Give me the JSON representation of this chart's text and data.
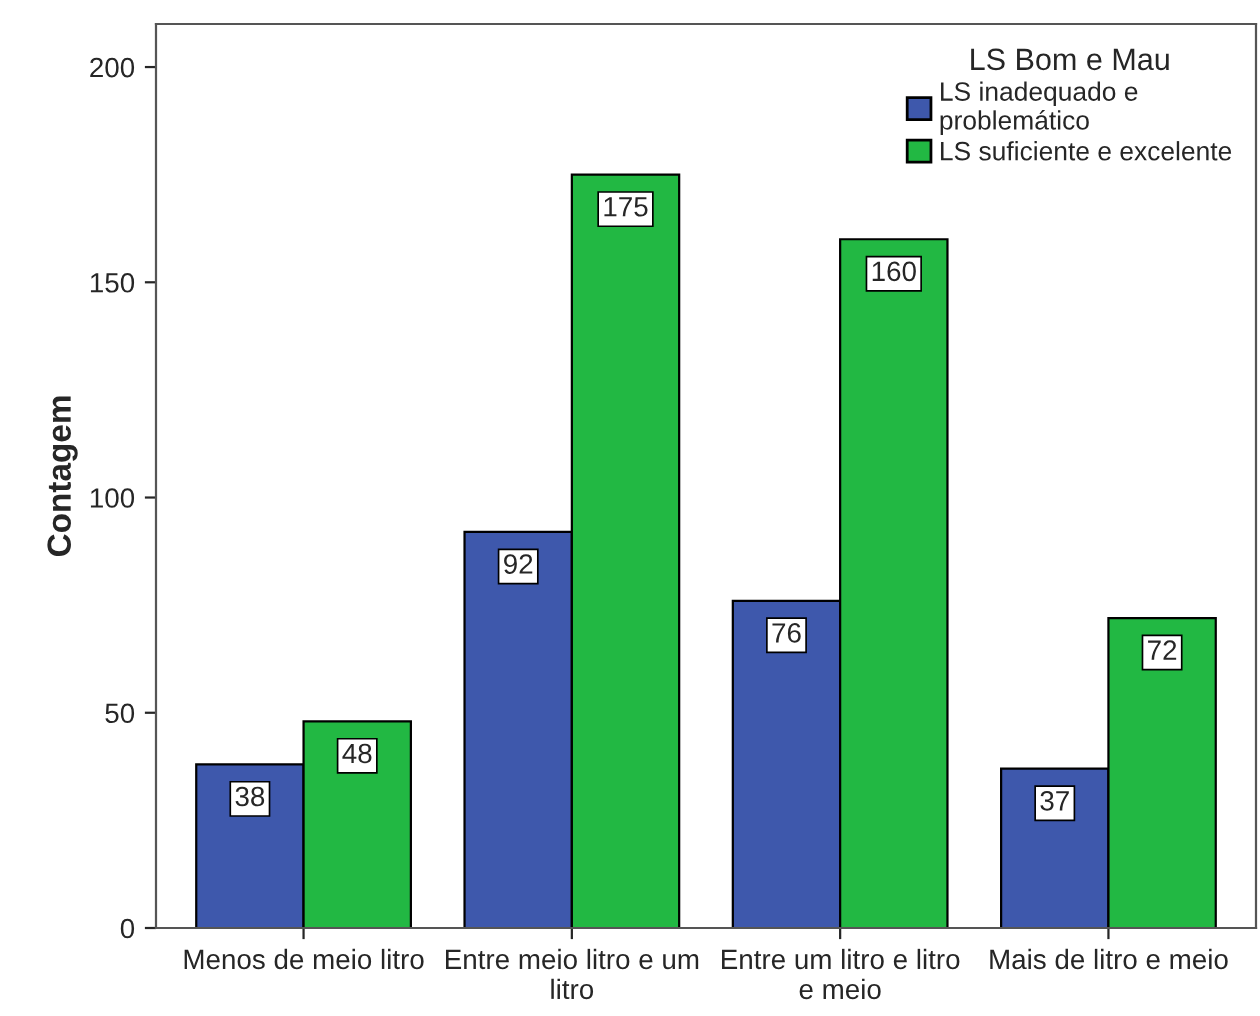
{
  "chart_data": {
    "type": "bar",
    "ylabel": "Contagem",
    "legend_title": "LS Bom e Mau",
    "categories": [
      "Menos de meio litro",
      "Entre meio litro e um\nlitro",
      "Entre um litro e litro\ne meio",
      "Mais de litro e meio"
    ],
    "series": [
      {
        "name": "LS inadequado e\nproblemático",
        "color": "#3e58ac",
        "values": [
          38,
          92,
          76,
          37
        ]
      },
      {
        "name": "LS suficiente e excelente",
        "color": "#22b843",
        "values": [
          48,
          175,
          160,
          72
        ]
      }
    ],
    "ylim": [
      0,
      210
    ],
    "yticks": [
      0,
      50,
      100,
      150,
      200
    ],
    "data_labels": true,
    "grid": false,
    "legend": "top right"
  }
}
